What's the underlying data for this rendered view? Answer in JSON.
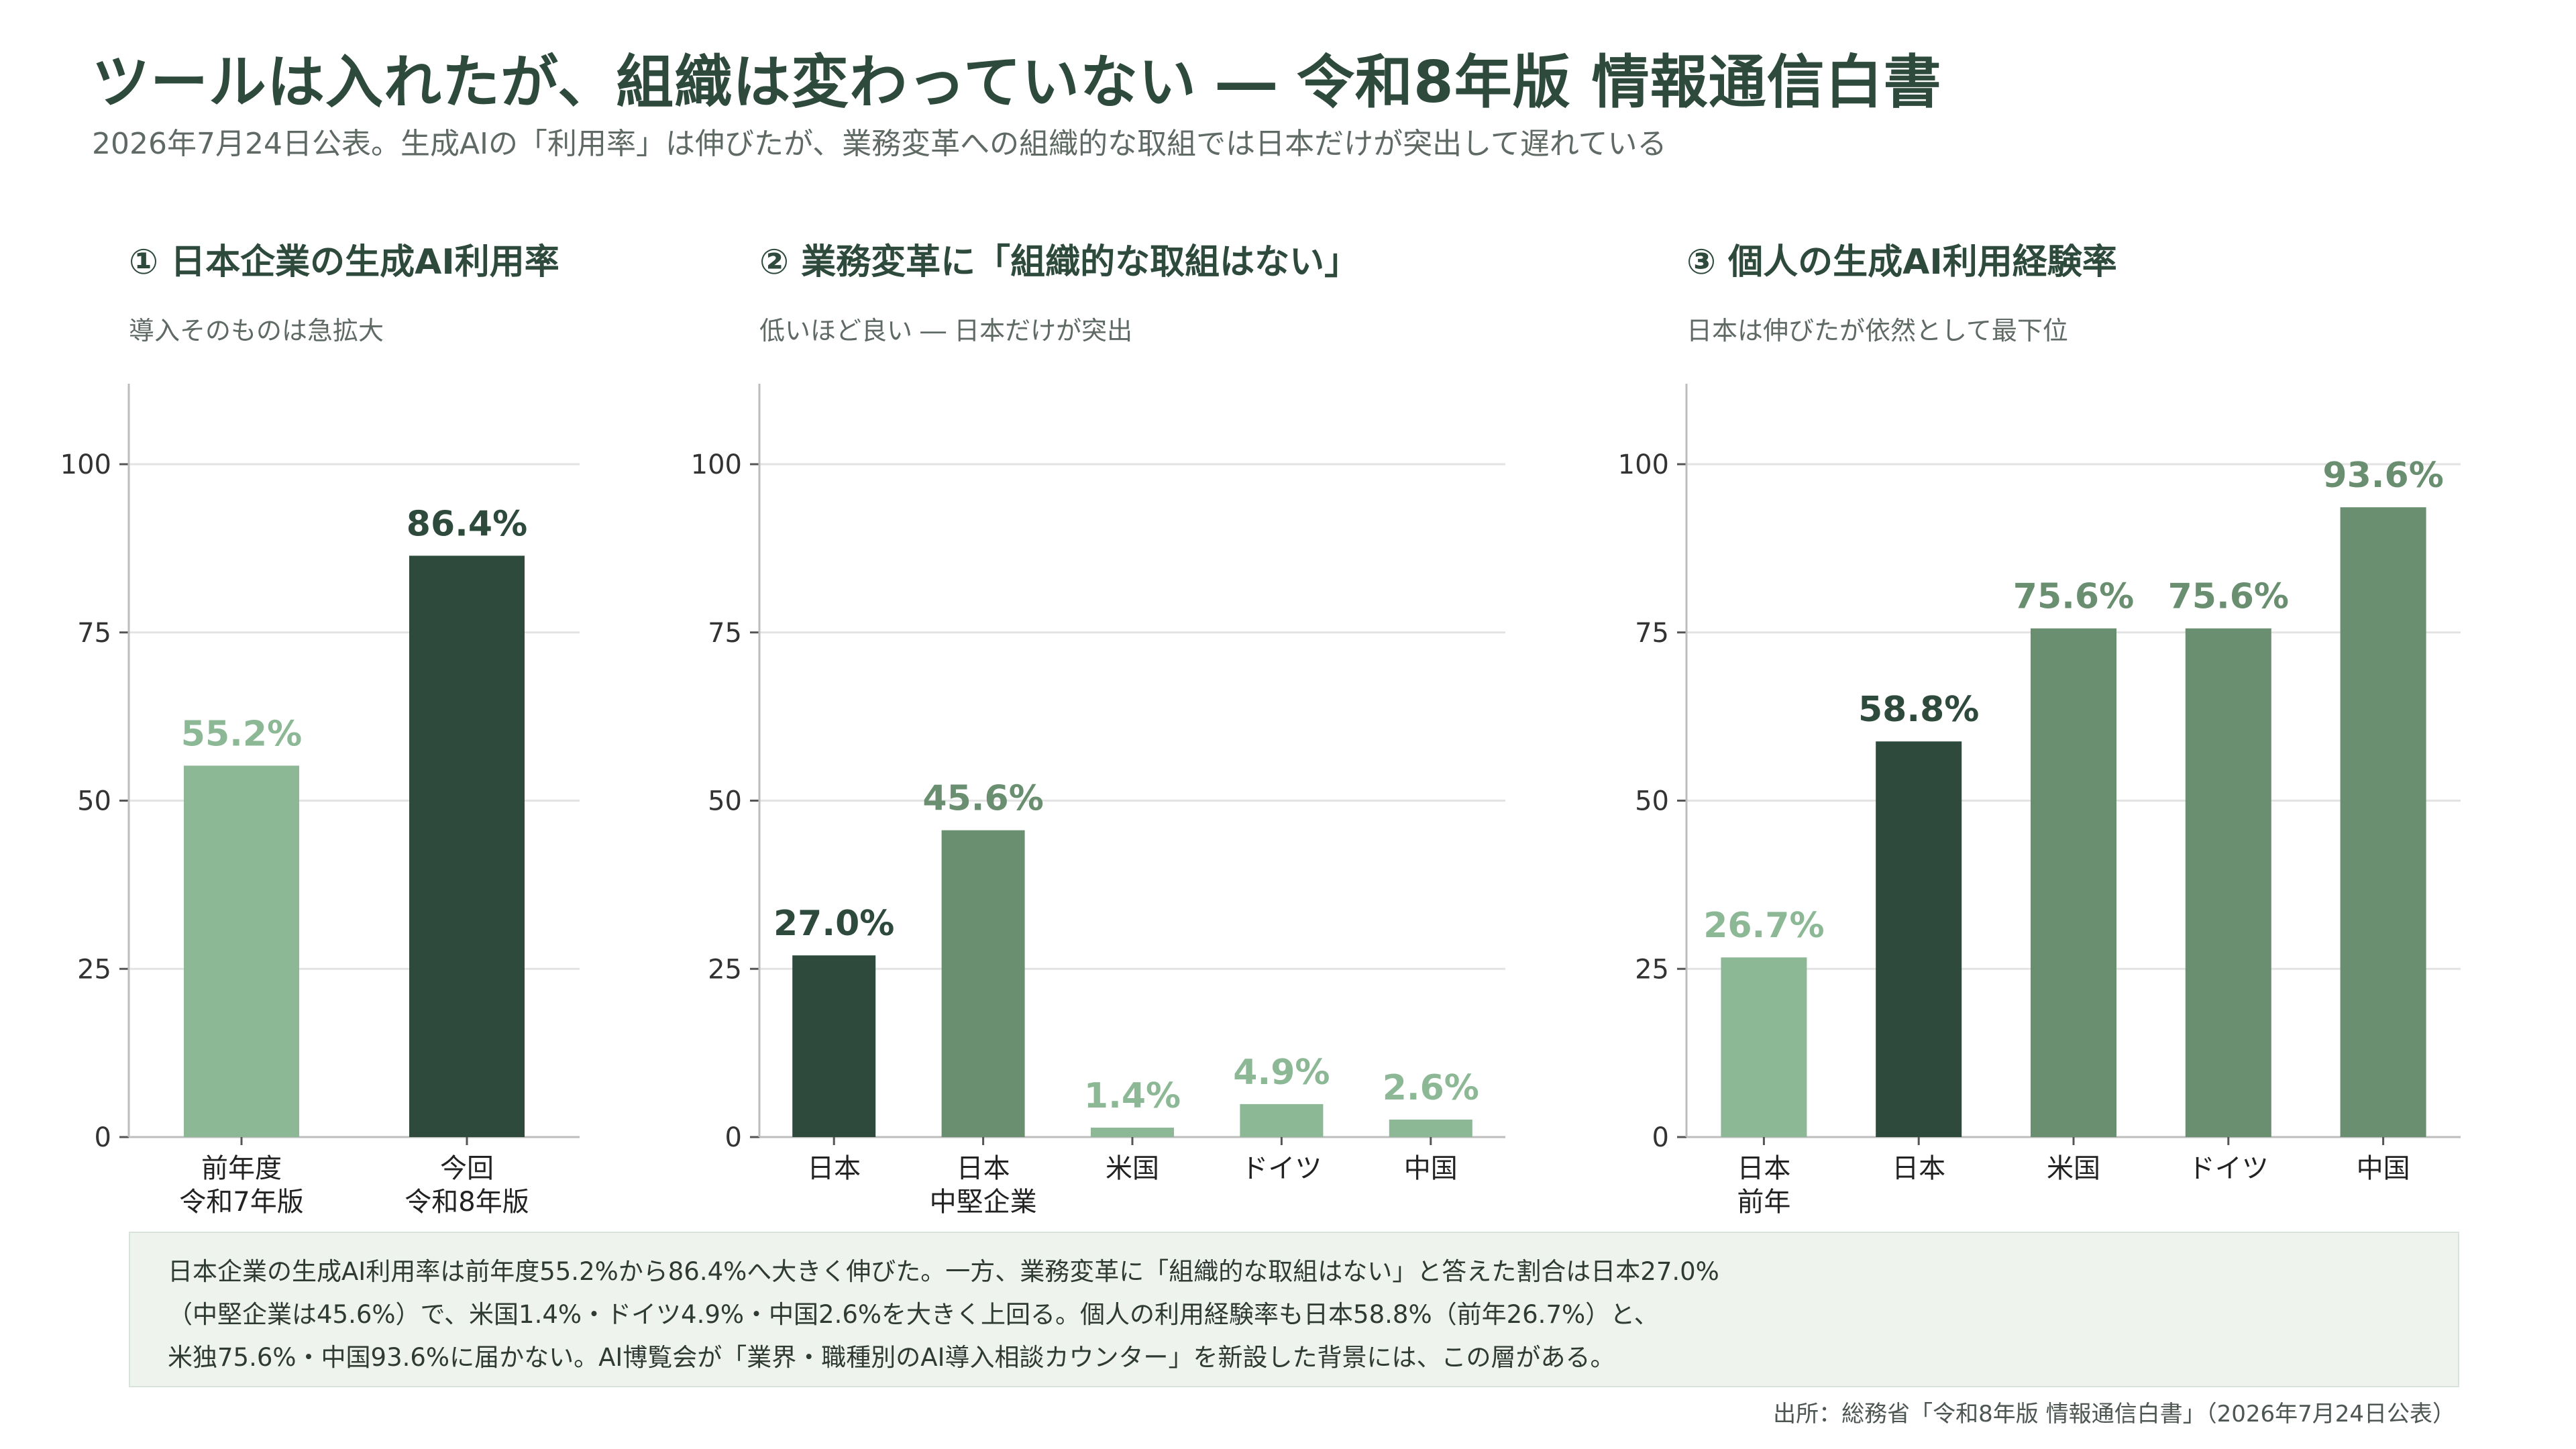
{
  "header": {
    "title": "ツールは入れたが、組織は変わっていない ― 令和8年版 情報通信白書",
    "subtitle": "2026年7月24日公表。生成AIの「利用率」は伸びたが、業務変革への組織的な取組では日本だけが突出して遅れている"
  },
  "colors": {
    "dark": "#2e4a3d",
    "mid": "#6a8f70",
    "light": "#8db896",
    "grid": "#e3e3e3",
    "axis": "#bdbdbd",
    "note_bg": "#eef3ee"
  },
  "chart_data": [
    {
      "type": "bar",
      "title": "① 日本企業の生成AI利用率",
      "subtitle": "導入そのものは急拡大",
      "categories": [
        [
          "前年度",
          "令和7年版"
        ],
        [
          "今回",
          "令和8年版"
        ]
      ],
      "values": [
        55.2,
        86.4
      ],
      "value_labels": [
        "55.2%",
        "86.4%"
      ],
      "bar_colors": [
        "light",
        "dark"
      ],
      "ylim": [
        0,
        100
      ],
      "yticks": [
        0,
        25,
        50,
        75,
        100
      ],
      "grid": true
    },
    {
      "type": "bar",
      "title": "② 業務変革に「組織的な取組はない」",
      "subtitle": "低いほど良い ― 日本だけが突出",
      "categories": [
        [
          "日本"
        ],
        [
          "日本",
          "中堅企業"
        ],
        [
          "米国"
        ],
        [
          "ドイツ"
        ],
        [
          "中国"
        ]
      ],
      "values": [
        27.0,
        45.6,
        1.4,
        4.9,
        2.6
      ],
      "value_labels": [
        "27.0%",
        "45.6%",
        "1.4%",
        "4.9%",
        "2.6%"
      ],
      "bar_colors": [
        "dark",
        "mid",
        "light",
        "light",
        "light"
      ],
      "ylim": [
        0,
        100
      ],
      "yticks": [
        0,
        25,
        50,
        75,
        100
      ],
      "grid": true
    },
    {
      "type": "bar",
      "title": "③ 個人の生成AI利用経験率",
      "subtitle": "日本は伸びたが依然として最下位",
      "categories": [
        [
          "日本",
          "前年"
        ],
        [
          "日本"
        ],
        [
          "米国"
        ],
        [
          "ドイツ"
        ],
        [
          "中国"
        ]
      ],
      "values": [
        26.7,
        58.8,
        75.6,
        75.6,
        93.6
      ],
      "value_labels": [
        "26.7%",
        "58.8%",
        "75.6%",
        "75.6%",
        "93.6%"
      ],
      "bar_colors": [
        "light",
        "dark",
        "mid",
        "mid",
        "mid"
      ],
      "ylim": [
        0,
        100
      ],
      "yticks": [
        0,
        25,
        50,
        75,
        100
      ],
      "grid": true
    }
  ],
  "note": {
    "lines": [
      "日本企業の生成AI利用率は前年度55.2%から86.4%へ大きく伸びた。一方、業務変革に「組織的な取組はない」と答えた割合は日本27.0%",
      "（中堅企業は45.6%）で、米国1.4%・ドイツ4.9%・中国2.6%を大きく上回る。個人の利用経験率も日本58.8%（前年26.7%）と、",
      "米独75.6%・中国93.6%に届かない。AI博覧会が「業界・職種別のAI導入相談カウンター」を新設した背景には、この層がある。"
    ]
  },
  "source": "出所：総務省「令和8年版 情報通信白書」（2026年7月24日公表）"
}
